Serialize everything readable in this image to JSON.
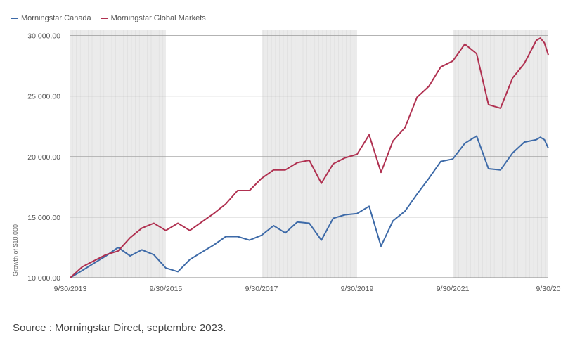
{
  "chart_data": {
    "type": "line",
    "title": "",
    "ylabel": "Growth of $10,000",
    "xlabel": "",
    "ylim": [
      10000,
      30500
    ],
    "xlim": [
      "2013-09-30",
      "2023-09-30"
    ],
    "y_ticks": [
      {
        "value": 10000,
        "label": "10,000.00"
      },
      {
        "value": 15000,
        "label": "15,000.00"
      },
      {
        "value": 20000,
        "label": "20,000.00"
      },
      {
        "value": 25000,
        "label": "25,000.00"
      },
      {
        "value": 30000,
        "label": "30,000.00"
      }
    ],
    "x_ticks": [
      {
        "value": "2013-09-30",
        "label": "9/30/2013"
      },
      {
        "value": "2015-09-30",
        "label": "9/30/2015"
      },
      {
        "value": "2017-09-30",
        "label": "9/30/2017"
      },
      {
        "value": "2019-09-30",
        "label": "9/30/2019"
      },
      {
        "value": "2021-09-30",
        "label": "9/30/2021"
      },
      {
        "value": "2023-09-30",
        "label": "9/30/20"
      }
    ],
    "shaded_bands": [
      [
        "2013-09-30",
        "2015-09-30"
      ],
      [
        "2017-09-30",
        "2019-09-30"
      ],
      [
        "2021-09-30",
        "2023-09-30"
      ]
    ],
    "legend_position": "top-left",
    "series": [
      {
        "name": "Morningstar Canada",
        "color": "#3d6aa8",
        "points": [
          [
            "2013-09-30",
            10000
          ],
          [
            "2013-12-31",
            10600
          ],
          [
            "2014-03-31",
            11200
          ],
          [
            "2014-06-30",
            11800
          ],
          [
            "2014-09-30",
            12500
          ],
          [
            "2014-12-31",
            11800
          ],
          [
            "2015-03-31",
            12300
          ],
          [
            "2015-06-30",
            11900
          ],
          [
            "2015-09-30",
            10800
          ],
          [
            "2015-12-31",
            10500
          ],
          [
            "2016-03-31",
            11500
          ],
          [
            "2016-06-30",
            12100
          ],
          [
            "2016-09-30",
            12700
          ],
          [
            "2016-12-31",
            13400
          ],
          [
            "2017-03-31",
            13400
          ],
          [
            "2017-06-30",
            13100
          ],
          [
            "2017-09-30",
            13500
          ],
          [
            "2017-12-31",
            14300
          ],
          [
            "2018-03-31",
            13700
          ],
          [
            "2018-06-30",
            14600
          ],
          [
            "2018-09-30",
            14500
          ],
          [
            "2018-12-31",
            13100
          ],
          [
            "2019-03-31",
            14900
          ],
          [
            "2019-06-30",
            15200
          ],
          [
            "2019-09-30",
            15300
          ],
          [
            "2019-12-31",
            15900
          ],
          [
            "2020-03-31",
            12600
          ],
          [
            "2020-06-30",
            14700
          ],
          [
            "2020-09-30",
            15500
          ],
          [
            "2020-12-31",
            16900
          ],
          [
            "2021-03-31",
            18200
          ],
          [
            "2021-06-30",
            19600
          ],
          [
            "2021-09-30",
            19800
          ],
          [
            "2021-12-31",
            21100
          ],
          [
            "2022-03-31",
            21700
          ],
          [
            "2022-06-30",
            19000
          ],
          [
            "2022-09-30",
            18900
          ],
          [
            "2022-12-31",
            20300
          ],
          [
            "2023-03-31",
            21200
          ],
          [
            "2023-06-30",
            21400
          ],
          [
            "2023-07-31",
            21600
          ],
          [
            "2023-08-31",
            21400
          ],
          [
            "2023-09-30",
            20700
          ]
        ]
      },
      {
        "name": "Morningstar Global Markets",
        "color": "#b03050",
        "points": [
          [
            "2013-09-30",
            10000
          ],
          [
            "2013-12-31",
            10900
          ],
          [
            "2014-03-31",
            11400
          ],
          [
            "2014-06-30",
            11900
          ],
          [
            "2014-09-30",
            12200
          ],
          [
            "2014-12-31",
            13300
          ],
          [
            "2015-03-31",
            14100
          ],
          [
            "2015-06-30",
            14500
          ],
          [
            "2015-09-30",
            13900
          ],
          [
            "2015-12-31",
            14500
          ],
          [
            "2016-03-31",
            13900
          ],
          [
            "2016-06-30",
            14600
          ],
          [
            "2016-09-30",
            15300
          ],
          [
            "2016-12-31",
            16100
          ],
          [
            "2017-03-31",
            17200
          ],
          [
            "2017-06-30",
            17200
          ],
          [
            "2017-09-30",
            18200
          ],
          [
            "2017-12-31",
            18900
          ],
          [
            "2018-03-31",
            18900
          ],
          [
            "2018-06-30",
            19500
          ],
          [
            "2018-09-30",
            19700
          ],
          [
            "2018-12-31",
            17800
          ],
          [
            "2019-03-31",
            19400
          ],
          [
            "2019-06-30",
            19900
          ],
          [
            "2019-09-30",
            20200
          ],
          [
            "2019-12-31",
            21800
          ],
          [
            "2020-03-31",
            18700
          ],
          [
            "2020-06-30",
            21300
          ],
          [
            "2020-09-30",
            22400
          ],
          [
            "2020-12-31",
            24900
          ],
          [
            "2021-03-31",
            25800
          ],
          [
            "2021-06-30",
            27400
          ],
          [
            "2021-09-30",
            27900
          ],
          [
            "2021-12-31",
            29300
          ],
          [
            "2022-03-31",
            28500
          ],
          [
            "2022-06-30",
            24300
          ],
          [
            "2022-09-30",
            24000
          ],
          [
            "2022-12-31",
            26500
          ],
          [
            "2023-03-31",
            27700
          ],
          [
            "2023-06-30",
            29600
          ],
          [
            "2023-07-31",
            29800
          ],
          [
            "2023-08-31",
            29400
          ],
          [
            "2023-09-30",
            28400
          ]
        ]
      }
    ]
  },
  "source": "Source : Morningstar Direct, septembre 2023."
}
